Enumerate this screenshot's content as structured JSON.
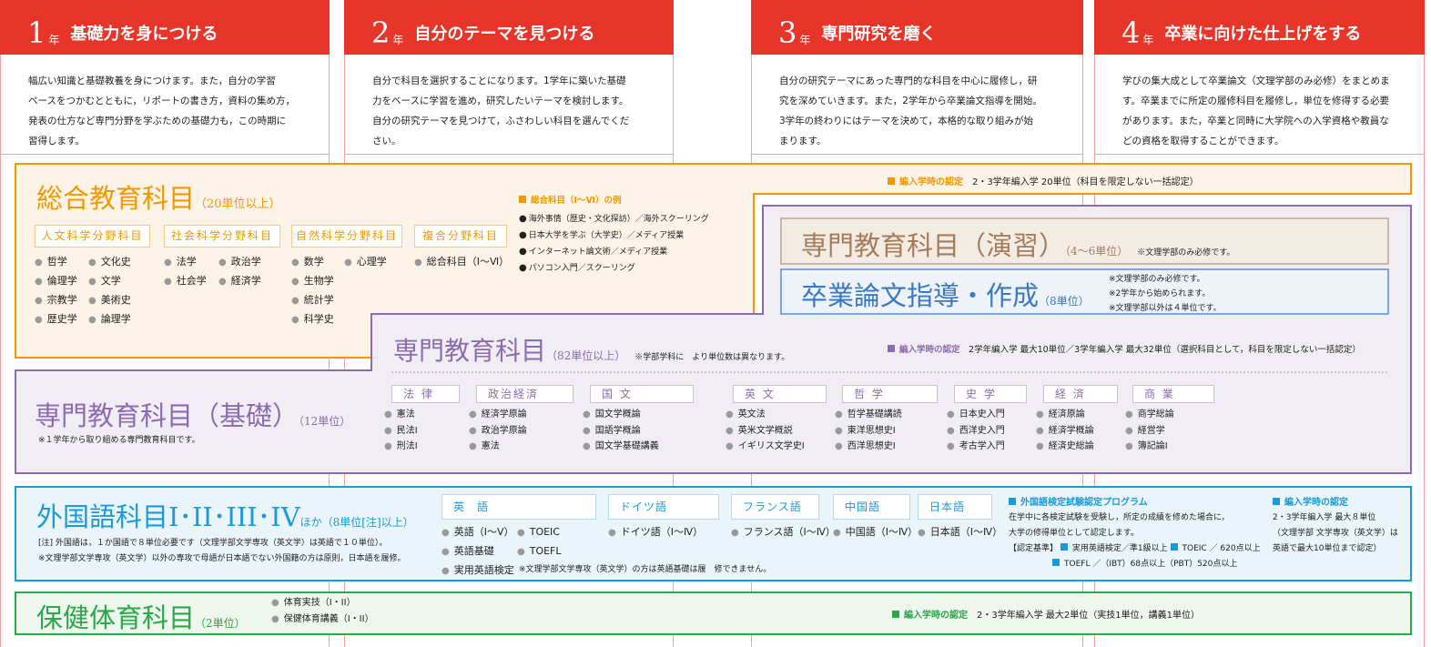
{
  "years": [
    {
      "num": "1",
      "unit": "年",
      "title": "基礎力を身につける",
      "text": "幅広い知識と基礎教養を身につけます。また，自分の学習\nペースをつかむとともに，リポートの書き方，資料の集め方，\n発表の仕方など専門分野を学ぶための基礎力も，この時期に\n習得します。"
    },
    {
      "num": "2",
      "unit": "年",
      "title": "自分のテーマを見つける",
      "text": "自分で科目を選択することになります。1学年に築いた基礎\n力をベースに学習を進め，研究したいテーマを検討します。\n自分の研究テーマを見つけて，ふさわしい科目を選んでくだ\nさい。"
    },
    {
      "num": "3",
      "unit": "年",
      "title": "専門研究を磨く",
      "text": "自分の研究テーマにあった専門的な科目を中心に履修し，研\n究を深めていきます。また，2学年から卒業論文指導を開始。\n3学年の終わりにはテーマを決めて，本格的な取り組みが始\nまります。"
    },
    {
      "num": "4",
      "unit": "年",
      "title": "卒業に向けた仕上げをする",
      "text": "学びの集大成として卒業論文（文理学部のみ必修）をまとめま\nす。卒業までに所定の履修科目を履修し，単位を修得する必要\nがあります。また，卒業と同時に大学院への入学資格や教員な\nどの資格を取得することができます。"
    }
  ],
  "colors": {
    "year": "#e8352a",
    "general": "#f39800",
    "special": "#8c6bb1",
    "seminar": "#a57c5a",
    "thesis": "#3a78c2",
    "foreign": "#1a9ad9",
    "health": "#2aa84a"
  },
  "general": {
    "title": "総合教育科目",
    "units": "（20単位以上）",
    "transfer_label": "編入学時の認定",
    "transfer_text": "2・3学年編入学 20単位（科目を限定しない一括認定）",
    "categories": [
      {
        "label": "人文科学分野科目",
        "items": [
          "哲学",
          "倫理学",
          "宗教学",
          "歴史学"
        ],
        "items2": [
          "文化史",
          "文学",
          "美術史",
          "論理学"
        ]
      },
      {
        "label": "社会科学分野科目",
        "items": [
          "法学",
          "社会学"
        ],
        "items2": [
          "政治学",
          "経済学"
        ]
      },
      {
        "label": "自然科学分野科目",
        "items": [
          "数学",
          "生物学",
          "統計学",
          "科学史"
        ],
        "items2": [
          "心理学"
        ]
      },
      {
        "label": "複合分野科目",
        "items": [
          "総合科目（I～Ⅵ）"
        ],
        "items2": []
      }
    ],
    "examples_title": "総合科目（I～Ⅵ）の例",
    "examples": [
      "海外事情（歴史・文化探訪）／海外スクーリング",
      "日本大学を学ぶ（大学史）／メディア授業",
      "インターネット論文術／メディア授業",
      "パソコン入門／スクーリング"
    ]
  },
  "seminar": {
    "title": "専門教育科目（演習）",
    "units": "（4～6単位）",
    "note": "※文理学部のみ必修です。"
  },
  "thesis": {
    "title": "卒業論文指導・作成",
    "units": "（8単位）",
    "notes": [
      "※文理学部のみ必修です。",
      "※2学年から始められます。",
      "※文理学部以外は４単位です。"
    ]
  },
  "special": {
    "title": "専門教育科目",
    "units": "（82単位以上）",
    "note": "※学部学科に　より単位数は異なります。",
    "transfer_label": "編入学時の認定",
    "transfer_text": "2学年編入学 最大10単位／3学年編入学 最大32単位（選択科目として，科目を限定しない一括認定）",
    "categories": [
      {
        "label": "法 律",
        "items": [
          "憲法",
          "民法I",
          "刑法I"
        ]
      },
      {
        "label": "政治経済",
        "items": [
          "経済学原論",
          "政治学原論",
          "憲法"
        ]
      },
      {
        "label": "国 文",
        "items": [
          "国文学概論",
          "国語学概論",
          "国文学基礎講義"
        ]
      },
      {
        "label": "英 文",
        "items": [
          "英文法",
          "英米文学概説",
          "イギリス文学史I"
        ]
      },
      {
        "label": "哲 学",
        "items": [
          "哲学基礎講読",
          "東洋思想史I",
          "西洋思想史I"
        ]
      },
      {
        "label": "史 学",
        "items": [
          "日本史入門",
          "西洋史入門",
          "考古学入門"
        ]
      },
      {
        "label": "経 済",
        "items": [
          "経済原論",
          "経済学概論",
          "経済史総論"
        ]
      },
      {
        "label": "商 業",
        "items": [
          "商学総論",
          "経営学",
          "簿記論I"
        ]
      }
    ]
  },
  "basic": {
    "title": "専門教育科目（基礎）",
    "units": "（12単位）",
    "note": "※１学年から取り組める専門教育科目です。"
  },
  "foreign": {
    "title": "外国語科目",
    "roman": "I･II･III･IV",
    "units": "ほか（8単位[注]以上）",
    "notes": [
      "[注] 外国語は，１か国語で８単位必要です（文理学部文学専攻（英文学）は英語で１０単位）。",
      "※文理学部文学専攻（英文学）以外の専攻で母語が日本語でない外国籍の方は原則，日本語を履修。"
    ],
    "languages": [
      {
        "label": "英　語",
        "items": [
          "英語（I～V）",
          "英語基礎",
          "実用英語検定"
        ],
        "items2": [
          "TOEIC",
          "TOEFL"
        ]
      },
      {
        "label": "ドイツ語",
        "items": [
          "ドイツ語（I～Ⅳ）"
        ]
      },
      {
        "label": "フランス語",
        "items": [
          "フランス語（I～Ⅳ）"
        ]
      },
      {
        "label": "中国語",
        "items": [
          "中国語（I～Ⅳ）"
        ]
      },
      {
        "label": "日本語",
        "items": [
          "日本語（I～Ⅳ）"
        ]
      }
    ],
    "english_note": "※文理学部文学専攻（英文学）の方は英語基礎は履　修できません。",
    "program_title": "外国語検定試験認定プログラム",
    "program_lines": [
      "在学中に各検定試験を受験し，所定の成績を修めた場合に，",
      "大学の修得単位として認定します。"
    ],
    "criteria_label": "【認定基準】",
    "criteria": [
      "実用英語検定／準1級以上",
      "TOEIC ／ 620点以上",
      "TOEFL ／（IBT）68点以上（PBT）520点以上"
    ],
    "transfer_label": "編入学時の認定",
    "transfer_lines": [
      "2・3学年編入学 最大８単位",
      "（文理学部 文学専攻（英文学）は",
      "英語で最大10単位まで認定）"
    ]
  },
  "health": {
    "title": "保健体育科目",
    "units": "（2単位）",
    "items": [
      "体育実技（I・II）",
      "保健体育講義（I・II）"
    ],
    "transfer_label": "編入学時の認定",
    "transfer_text": "2・3学年編入学 最大2単位（実技1単位，講義1単位）"
  }
}
